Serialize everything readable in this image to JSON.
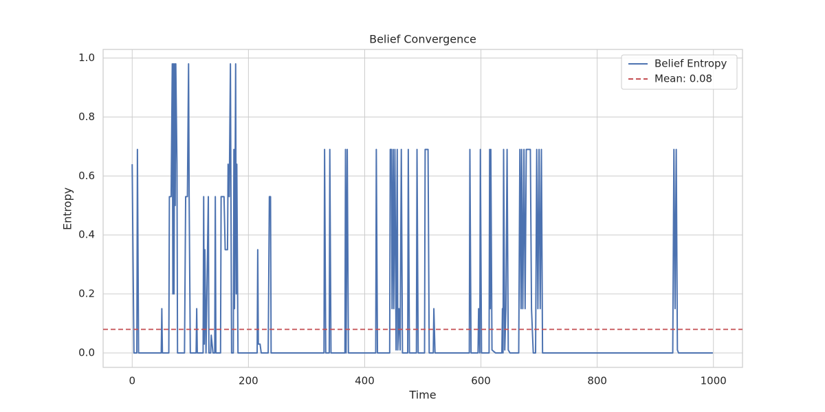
{
  "chart_data": {
    "type": "line",
    "title": "Belief Convergence",
    "x_label": "Time",
    "y_label": "Entropy",
    "xlim": [
      -50,
      1050
    ],
    "ylim": [
      -0.049,
      1.029
    ],
    "xticks": [
      0,
      200,
      400,
      600,
      800,
      1000
    ],
    "yticks": [
      {
        "value": 0,
        "label": "0.0"
      },
      0.2,
      0.4,
      0.6,
      0.8,
      {
        "value": 1,
        "label": "1.0"
      }
    ],
    "grid": true,
    "legend": "upper right",
    "x": [
      0,
      3,
      8,
      9,
      11,
      50,
      51,
      52,
      63,
      64,
      67,
      69,
      70,
      71,
      72,
      73,
      74,
      75,
      77,
      78,
      90,
      92,
      95,
      97,
      98,
      100,
      110,
      111,
      112,
      122,
      123,
      124,
      125,
      127,
      131,
      132,
      135,
      136,
      139,
      142,
      143,
      144,
      152,
      153,
      158,
      160,
      164,
      165,
      167,
      169,
      171,
      174,
      175,
      176,
      178,
      179,
      180,
      182,
      215,
      216,
      217,
      220,
      222,
      234,
      236,
      238,
      239,
      330,
      331,
      333,
      339,
      340,
      342,
      366,
      367,
      368,
      370,
      372,
      419,
      420,
      422,
      443,
      444,
      446,
      447,
      449,
      450,
      452,
      454,
      456,
      457,
      459,
      461,
      463,
      465,
      474,
      475,
      477,
      489,
      490,
      492,
      503,
      504,
      509,
      511,
      518,
      519,
      521,
      580,
      581,
      583,
      595,
      596,
      598,
      599,
      601,
      614,
      615,
      616,
      617,
      619,
      625,
      636,
      637,
      638,
      639,
      641,
      643,
      645,
      647,
      650,
      665,
      667,
      669,
      670,
      672,
      674,
      676,
      678,
      685,
      687,
      690,
      694,
      696,
      698,
      700,
      702,
      704,
      706,
      930,
      932,
      934,
      936,
      938,
      940,
      999
    ],
    "series": [
      {
        "name": "Belief Entropy",
        "color": "#4c72b0",
        "values": [
          0.64,
          0,
          0,
          0.69,
          0,
          0,
          0.15,
          0,
          0,
          0.53,
          0.53,
          0.98,
          0.2,
          0.98,
          0.2,
          0.98,
          0.5,
          0.98,
          0.64,
          0,
          0,
          0.53,
          0.53,
          0.98,
          0.53,
          0,
          0,
          0.15,
          0,
          0,
          0.53,
          0.03,
          0.35,
          0,
          0.53,
          0,
          0,
          0.06,
          0,
          0,
          0.53,
          0,
          0,
          0.53,
          0.53,
          0.35,
          0.35,
          0.64,
          0.53,
          0.98,
          0,
          0,
          0.69,
          0.15,
          0.98,
          0.2,
          0.64,
          0,
          0,
          0.35,
          0.03,
          0.03,
          0,
          0,
          0.53,
          0.53,
          0,
          0,
          0.69,
          0,
          0,
          0.69,
          0,
          0,
          0.69,
          0,
          0.69,
          0,
          0,
          0.69,
          0,
          0,
          0.69,
          0.69,
          0.15,
          0.69,
          0.15,
          0.69,
          0.01,
          0.69,
          0.01,
          0.15,
          0.01,
          0.69,
          0,
          0,
          0.69,
          0,
          0,
          0.69,
          0,
          0,
          0.69,
          0.69,
          0,
          0,
          0.15,
          0,
          0,
          0.69,
          0,
          0,
          0.15,
          0,
          0.69,
          0,
          0,
          0.69,
          0.15,
          0.69,
          0.01,
          0,
          0,
          0.15,
          0,
          0.69,
          0.01,
          0.15,
          0.69,
          0.01,
          0,
          0,
          0.69,
          0.15,
          0.69,
          0.15,
          0.69,
          0.15,
          0.69,
          0.69,
          0.15,
          0,
          0,
          0.69,
          0.15,
          0.69,
          0.15,
          0.69,
          0,
          0,
          0.69,
          0.15,
          0.69,
          0.01,
          0,
          0
        ]
      },
      {
        "name": "Mean: 0.08",
        "color": "#c44e52",
        "value": 0.08,
        "dashed": true
      }
    ]
  }
}
